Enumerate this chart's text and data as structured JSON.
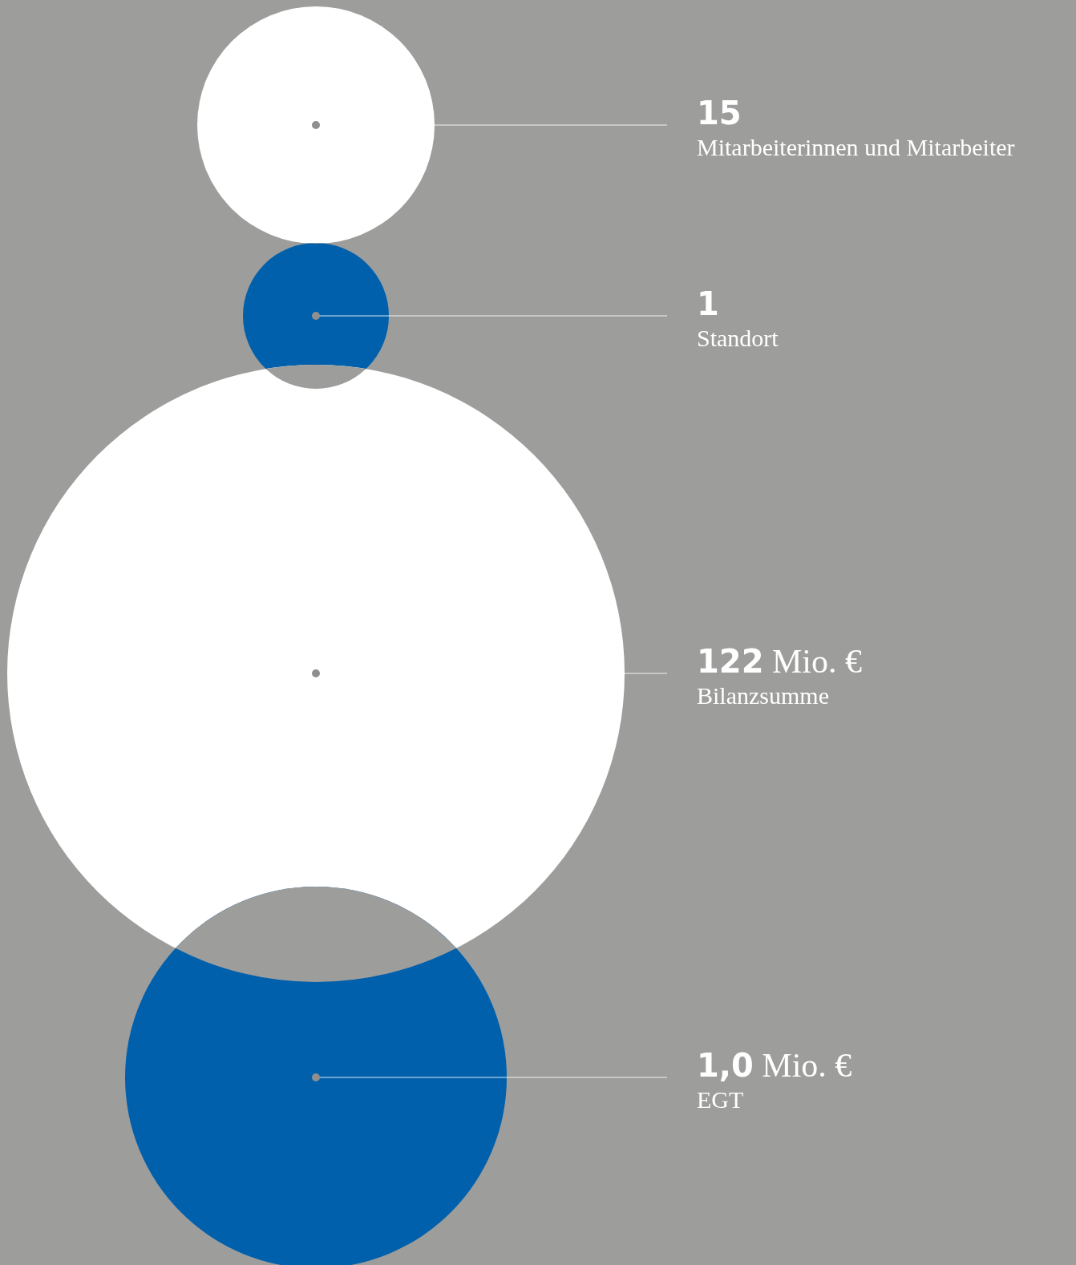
{
  "chart_data": {
    "type": "other",
    "categories": [
      "Mitarbeiterinnen und Mitarbeiter",
      "Standort",
      "Bilanzsumme",
      "EGT"
    ],
    "values": [
      15,
      1,
      122,
      1.0
    ],
    "value_labels": [
      "15",
      "1",
      "122 Mio. €",
      "1,0 Mio. €"
    ],
    "colors": [
      "#ffffff",
      "#0060ac",
      "#ffffff",
      "#0060ac"
    ]
  }
}
